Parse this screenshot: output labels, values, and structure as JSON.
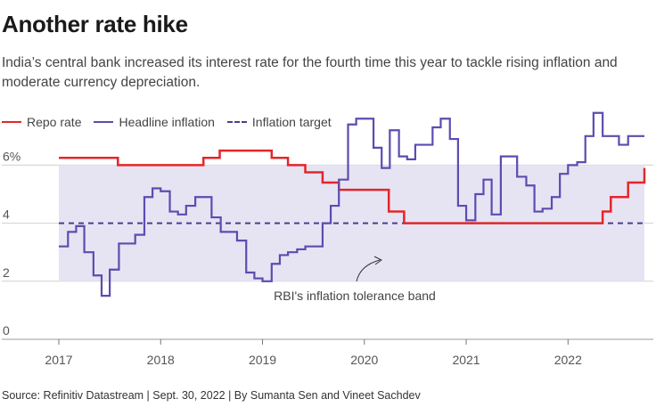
{
  "title": "Another rate hike",
  "subtitle": "India’s central bank increased its interest rate for the fourth time this year to tackle rising inflation and moderate currency depreciation.",
  "source": "Source: Refinitiv Datastream | Sept. 30, 2022 | By Sumanta Sen and Vineet Sachdev",
  "colors": {
    "repo": "#e4262b",
    "inflation": "#5e4bb0",
    "target": "#4a3f8f",
    "band": "#e6e4f3"
  },
  "chart_data": {
    "type": "line",
    "title": "Another rate hike",
    "ylim": [
      0,
      7
    ],
    "xlim": [
      2017.0,
      2022.75
    ],
    "y_ticks": [
      0,
      2,
      4,
      6
    ],
    "y_tick_labels": [
      "0",
      "2",
      "4",
      "6%"
    ],
    "x_ticks": [
      2017,
      2018,
      2019,
      2020,
      2021,
      2022
    ],
    "x_tick_labels": [
      "2017",
      "2018",
      "2019",
      "2020",
      "2021",
      "2022"
    ],
    "grid": true,
    "legend_position": "top-left",
    "band": {
      "label": "RBI's inflation tolerance band",
      "from": 2,
      "to": 6
    },
    "series": [
      {
        "name": "Repo rate",
        "step": true,
        "x": [
          2017.0,
          2017.58,
          2018.42,
          2018.58,
          2019.09,
          2019.25,
          2019.42,
          2019.59,
          2019.75,
          2019.84,
          2020.24,
          2020.39,
          2022.34,
          2022.42,
          2022.59,
          2022.75
        ],
        "y": [
          6.25,
          6.0,
          6.25,
          6.5,
          6.25,
          6.0,
          5.75,
          5.4,
          5.15,
          5.15,
          4.4,
          4.0,
          4.4,
          4.9,
          5.4,
          5.9
        ]
      },
      {
        "name": "Headline inflation",
        "step": true,
        "x": [
          2017.0,
          2017.09,
          2017.17,
          2017.25,
          2017.34,
          2017.42,
          2017.5,
          2017.59,
          2017.67,
          2017.75,
          2017.84,
          2017.92,
          2018.0,
          2018.09,
          2018.17,
          2018.25,
          2018.34,
          2018.42,
          2018.5,
          2018.59,
          2018.67,
          2018.75,
          2018.84,
          2018.92,
          2019.0,
          2019.09,
          2019.17,
          2019.25,
          2019.34,
          2019.42,
          2019.5,
          2019.59,
          2019.67,
          2019.75,
          2019.84,
          2019.92,
          2020.0,
          2020.09,
          2020.17,
          2020.25,
          2020.34,
          2020.42,
          2020.5,
          2020.59,
          2020.67,
          2020.75,
          2020.84,
          2020.92,
          2021.0,
          2021.09,
          2021.17,
          2021.25,
          2021.34,
          2021.42,
          2021.5,
          2021.59,
          2021.67,
          2021.75,
          2021.84,
          2021.92,
          2022.0,
          2022.09,
          2022.17,
          2022.25,
          2022.34,
          2022.42,
          2022.5,
          2022.59,
          2022.67
        ],
        "y": [
          3.2,
          3.7,
          3.9,
          3.0,
          2.2,
          1.5,
          2.4,
          3.3,
          3.3,
          3.6,
          4.9,
          5.2,
          5.1,
          4.4,
          4.3,
          4.6,
          4.9,
          4.9,
          4.2,
          3.7,
          3.7,
          3.4,
          2.3,
          2.1,
          2.0,
          2.6,
          2.9,
          3.0,
          3.1,
          3.2,
          3.2,
          4.0,
          4.6,
          5.5,
          7.4,
          7.6,
          7.6,
          6.6,
          5.9,
          7.2,
          6.3,
          6.2,
          6.7,
          6.7,
          7.3,
          7.6,
          6.9,
          4.6,
          4.1,
          5.0,
          5.5,
          4.3,
          6.3,
          6.3,
          5.6,
          5.3,
          4.4,
          4.5,
          4.9,
          5.7,
          6.0,
          6.1,
          7.0,
          7.8,
          7.0,
          7.0,
          6.7,
          7.0,
          7.0
        ]
      },
      {
        "name": "Inflation target",
        "dashed": true,
        "x": [
          2017.0,
          2022.75
        ],
        "y": [
          4,
          4
        ]
      }
    ],
    "annotation": "RBI's inflation tolerance band"
  }
}
